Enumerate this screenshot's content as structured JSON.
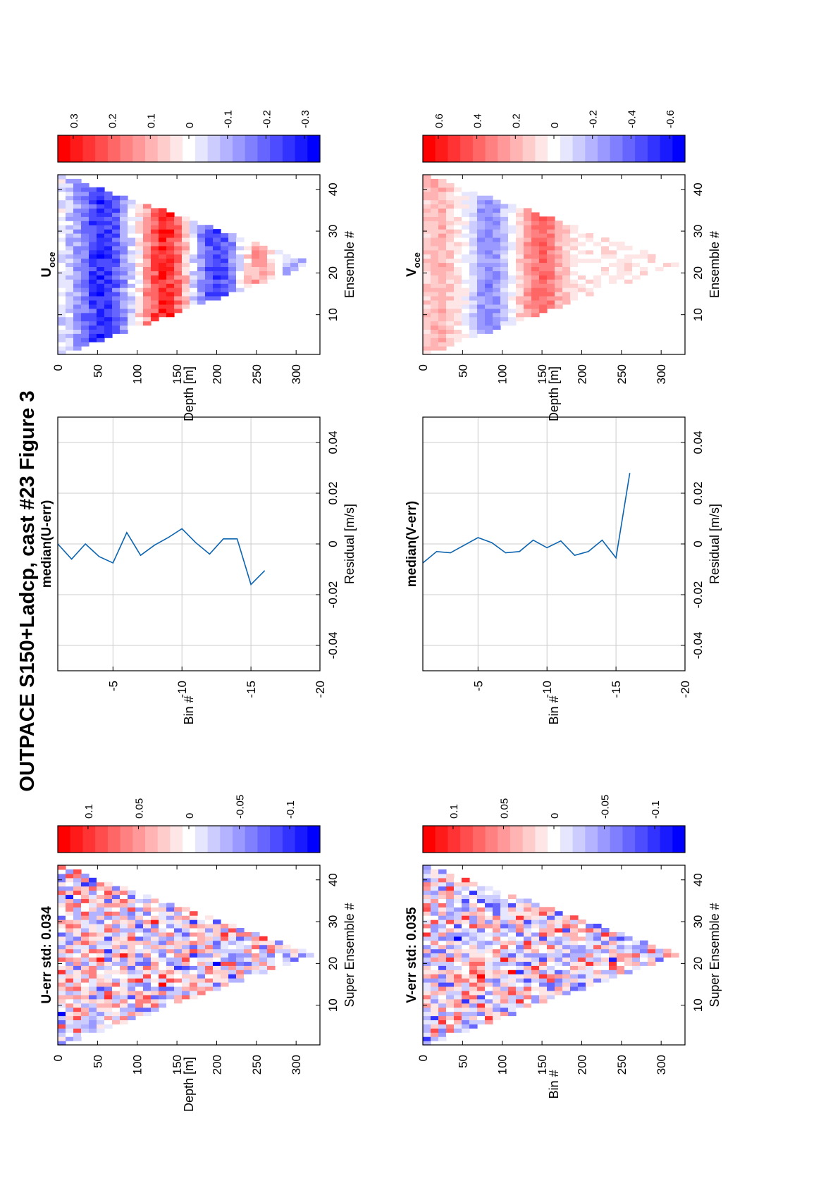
{
  "figure": {
    "title": "OUTPACE S150+Ladcp, cast #23  Figure 3",
    "orientation": "rotated-90-ccw"
  },
  "colormap": {
    "negative": "#0000ff",
    "zero": "#ffffff",
    "positive": "#ff0000",
    "levels": 21
  },
  "chart_data": [
    {
      "id": "u_err",
      "type": "heatmap",
      "title": "U-err std: 0.034",
      "xlabel": "Super Ensemble #",
      "ylabel": "Depth [m]",
      "xlim": [
        0.5,
        43.5
      ],
      "ylim": [
        0,
        330
      ],
      "xticks": [
        10,
        20,
        30,
        40
      ],
      "yticks": [
        0,
        50,
        100,
        150,
        200,
        250,
        300
      ],
      "grid": false,
      "colorbar": {
        "range": [
          -0.13,
          0.13
        ],
        "ticks": [
          0.1,
          0.05,
          0,
          -0.05,
          -0.1
        ],
        "tick_labels": [
          "0.1",
          "0.05",
          "0",
          "-0.05",
          "-0.1"
        ]
      },
      "field": {
        "cols": 43,
        "rows": 33,
        "bottom_depth": 322,
        "turn_ensemble": 22,
        "amplitude": 0.06,
        "seed": 11,
        "mode": "noise"
      }
    },
    {
      "id": "median_u_err",
      "type": "line",
      "title": "median(U-err)",
      "xlabel": "Residual [m/s]",
      "ylabel": "Bin #",
      "xlim": [
        -0.05,
        0.05
      ],
      "ylim": [
        -20,
        -1
      ],
      "xticks": [
        -0.04,
        -0.02,
        0,
        0.02,
        0.04
      ],
      "yticks": [
        -5,
        -10,
        -15,
        -20
      ],
      "grid": true,
      "series": [
        {
          "x": [
            0.0,
            -0.006,
            0.0,
            -0.005,
            -0.0075,
            0.0045,
            -0.0045,
            -0.0005,
            0.0025,
            0.006,
            0.0005,
            -0.004,
            0.002,
            0.002,
            -0.016,
            -0.0105
          ],
          "y": [
            -1,
            -2,
            -3,
            -4,
            -5,
            -6,
            -7,
            -8,
            -9,
            -10,
            -11,
            -12,
            -13,
            -14,
            -15,
            -16
          ]
        }
      ]
    },
    {
      "id": "u_oce",
      "type": "heatmap",
      "title": "U",
      "title_subscript": "oce",
      "xlabel": "Ensemble #",
      "ylabel": "Depth [m]",
      "xlim": [
        0.5,
        43.5
      ],
      "ylim": [
        0,
        330
      ],
      "xticks": [
        10,
        20,
        30,
        40
      ],
      "yticks": [
        0,
        50,
        100,
        150,
        200,
        250,
        300
      ],
      "grid": false,
      "colorbar": {
        "range": [
          -0.34,
          0.34
        ],
        "ticks": [
          0.3,
          0.2,
          0.1,
          0,
          -0.1,
          -0.2,
          -0.3
        ],
        "tick_labels": [
          "0.3",
          "0.2",
          "0.1",
          "0",
          "-0.1",
          "-0.2",
          "-0.3"
        ]
      },
      "field": {
        "cols": 43,
        "rows": 33,
        "bottom_depth": 322,
        "turn_ensemble": 22,
        "amplitude": 0.3,
        "seed": 23,
        "mode": "u_profile"
      }
    },
    {
      "id": "v_err",
      "type": "heatmap",
      "title": "V-err std: 0.035",
      "xlabel": "Super Ensemble #",
      "ylabel": "Bin #",
      "xlim": [
        0.5,
        43.5
      ],
      "ylim": [
        0,
        330
      ],
      "xticks": [
        10,
        20,
        30,
        40
      ],
      "yticks": [
        0,
        50,
        100,
        150,
        200,
        250,
        300
      ],
      "grid": false,
      "colorbar": {
        "range": [
          -0.13,
          0.13
        ],
        "ticks": [
          0.1,
          0.05,
          0,
          -0.05,
          -0.1
        ],
        "tick_labels": [
          "0.1",
          "0.05",
          "0",
          "-0.05",
          "-0.1"
        ]
      },
      "field": {
        "cols": 43,
        "rows": 33,
        "bottom_depth": 322,
        "turn_ensemble": 22,
        "amplitude": 0.06,
        "seed": 37,
        "mode": "noise"
      }
    },
    {
      "id": "median_v_err",
      "type": "line",
      "title": "median(V-err)",
      "xlabel": "Residual [m/s]",
      "ylabel": "Bin #",
      "xlim": [
        -0.05,
        0.05
      ],
      "ylim": [
        -20,
        -1
      ],
      "xticks": [
        -0.04,
        -0.02,
        0,
        0.02,
        0.04
      ],
      "yticks": [
        -5,
        -10,
        -15,
        -20
      ],
      "grid": true,
      "series": [
        {
          "x": [
            -0.0075,
            -0.003,
            -0.0035,
            -0.0005,
            0.0025,
            0.0005,
            -0.0035,
            -0.003,
            0.0015,
            -0.0015,
            0.0012,
            -0.0045,
            -0.003,
            0.0015,
            -0.0055,
            0.028
          ],
          "y": [
            -1,
            -2,
            -3,
            -4,
            -5,
            -6,
            -7,
            -8,
            -9,
            -10,
            -11,
            -12,
            -13,
            -14,
            -15,
            -16
          ]
        }
      ]
    },
    {
      "id": "v_oce",
      "type": "heatmap",
      "title": "V",
      "title_subscript": "oce",
      "xlabel": "Ensemble #",
      "ylabel": "Depth [m]",
      "xlim": [
        0.5,
        43.5
      ],
      "ylim": [
        0,
        330
      ],
      "xticks": [
        10,
        20,
        30,
        40
      ],
      "yticks": [
        0,
        50,
        100,
        150,
        200,
        250,
        300
      ],
      "grid": false,
      "colorbar": {
        "range": [
          -0.68,
          0.68
        ],
        "ticks": [
          0.6,
          0.4,
          0.2,
          0,
          -0.2,
          -0.4,
          -0.6
        ],
        "tick_labels": [
          "0.6",
          "0.4",
          "0.2",
          "0",
          "-0.2",
          "-0.4",
          "-0.6"
        ]
      },
      "field": {
        "cols": 43,
        "rows": 33,
        "bottom_depth": 322,
        "turn_ensemble": 22,
        "amplitude": 0.6,
        "seed": 51,
        "mode": "v_profile"
      }
    }
  ]
}
